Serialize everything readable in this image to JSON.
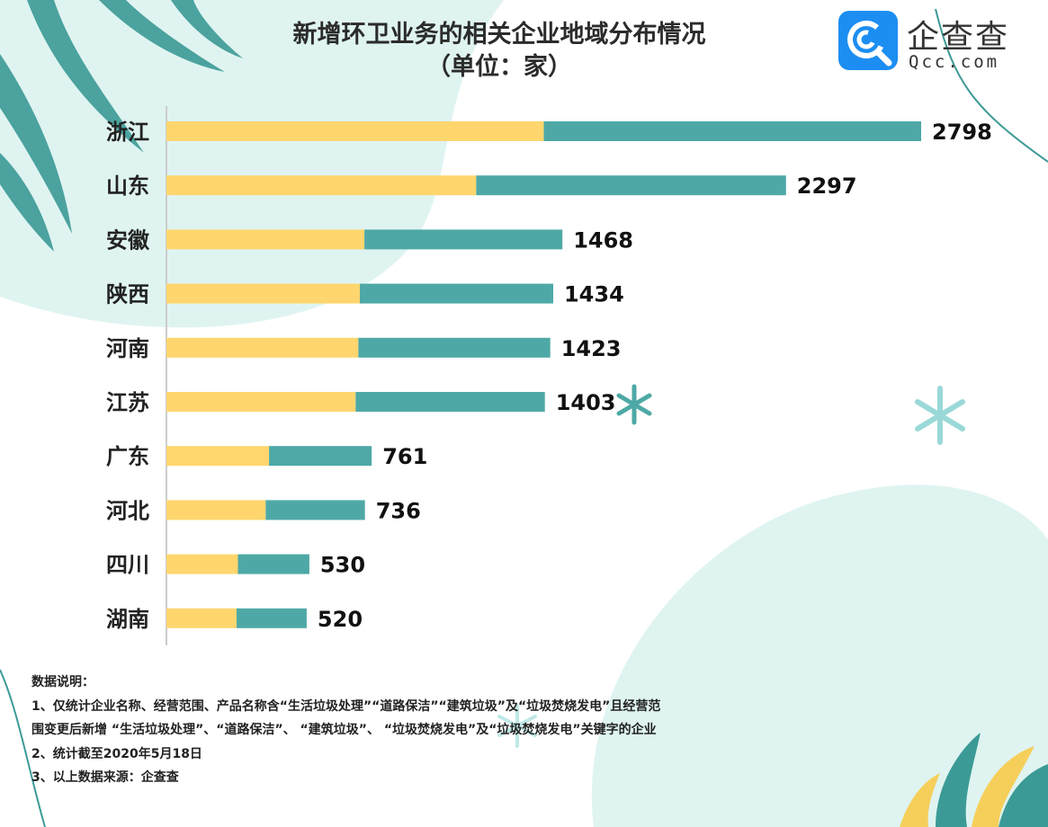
{
  "title_line1": "新增环卫业务的相关企业地域分布情况",
  "title_line2": "（单位：家）",
  "logo": {
    "name": "企查查",
    "url": "Qcc.com",
    "brand_color": "#1c8ef2"
  },
  "colors": {
    "bar_left": "#ffd66e",
    "bar_right": "#4ea9a6",
    "axis": "#cccccc",
    "bg_blob": "#dff4f1",
    "leaf_dark": "#3c9a96",
    "leaf_yellow": "#f5cf5a"
  },
  "chart_data": {
    "type": "bar",
    "orientation": "horizontal",
    "stacked_appearance": true,
    "title": "新增环卫业务的相关企业地域分布情况（单位：家）",
    "categories": [
      "浙江",
      "山东",
      "安徽",
      "陕西",
      "河南",
      "江苏",
      "广东",
      "河北",
      "四川",
      "湖南"
    ],
    "values": [
      2798,
      2297,
      1468,
      1434,
      1423,
      1403,
      761,
      736,
      530,
      520
    ],
    "yellow_segment_fraction": [
      0.5,
      0.5,
      0.5,
      0.5,
      0.5,
      0.5,
      0.5,
      0.5,
      0.5,
      0.5
    ],
    "xlim": [
      0,
      2798
    ],
    "grid": false,
    "legend": "none"
  },
  "notes": {
    "heading": "数据说明：",
    "line1": "1、仅统计企业名称、经营范围、产品名称含“生活垃圾处理”“道路保洁”“建筑垃圾”及“垃圾焚烧发电”且经营范",
    "line2": "围变更后新增 “生活垃圾处理”、“道路保洁”、 “建筑垃圾”、 “垃圾焚烧发电”及“垃圾焚烧发电”关键字的企业",
    "line3": "2、统计截至2020年5月18日",
    "line4": "3、以上数据来源：企查查"
  }
}
